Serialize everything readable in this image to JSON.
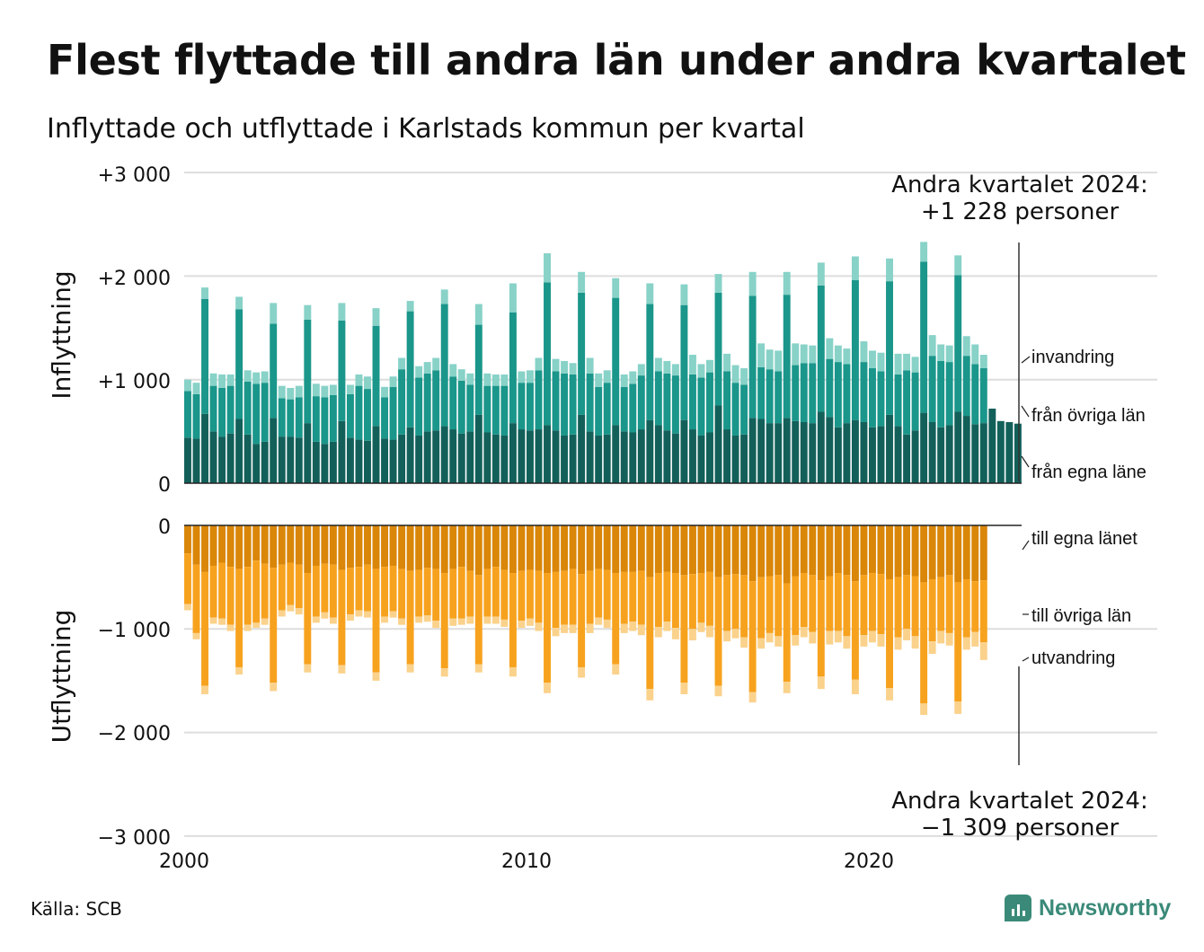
{
  "title": "Flest flyttade till andra län under andra kvartalet",
  "subtitle": "Inflyttade och utflyttade i Karlstads kommun per kvartal",
  "source": "Källa: SCB",
  "logo_text": "Newsworthy",
  "annotations": {
    "top_line1": "Andra kvartalet 2024:",
    "top_line2": "+1 228 personer",
    "bottom_line1": "Andra kvartalet 2024:",
    "bottom_line2": "−1 309 personer"
  },
  "colors": {
    "in_own": "#13605a",
    "in_other": "#1a968a",
    "in_immig": "#88d2c8",
    "out_own": "#d98609",
    "out_other": "#f7a21e",
    "out_emig": "#fad28c",
    "grid": "#dddddd",
    "logo": "#3b8a79"
  },
  "chart_data": {
    "type": "bar",
    "stacked": true,
    "period": "quarter",
    "first_period": "2000 Q1",
    "last_period": "2024 Q2",
    "xlim": [
      2000,
      2028
    ],
    "xticks": [
      "2000",
      "2010",
      "2020"
    ],
    "ylim": [
      -3000,
      3000
    ],
    "yticks": [
      "+3 000",
      "+2 000",
      "+1 000",
      "0",
      "0",
      "−1 000",
      "−2 000",
      "−3 000"
    ],
    "panels": [
      {
        "ylabel": "Inflyttning",
        "series": [
          {
            "name": "från egna länet",
            "label": "från egna läne",
            "values": [
              440,
              430,
              670,
              500,
              450,
              480,
              620,
              470,
              380,
              400,
              630,
              450,
              450,
              440,
              580,
              400,
              380,
              400,
              600,
              440,
              420,
              410,
              550,
              430,
              420,
              470,
              540,
              460,
              500,
              510,
              550,
              520,
              480,
              500,
              660,
              490,
              470,
              460,
              580,
              520,
              510,
              520,
              560,
              510,
              460,
              470,
              660,
              500,
              460,
              470,
              560,
              500,
              490,
              520,
              610,
              560,
              510,
              480,
              610,
              520,
              460,
              490,
              750,
              520,
              460,
              470,
              630,
              620,
              580,
              580,
              630,
              600,
              590,
              580,
              690,
              640,
              540,
              580,
              610,
              590,
              540,
              550,
              660,
              550,
              470,
              510,
              680,
              590,
              540,
              560,
              690,
              650,
              570,
              580,
              720,
              600,
              590,
              575
            ]
          },
          {
            "name": "från övriga län",
            "values": [
              450,
              430,
              1110,
              440,
              470,
              460,
              1060,
              510,
              580,
              570,
              910,
              370,
              360,
              390,
              1000,
              440,
              450,
              450,
              970,
              420,
              520,
              500,
              970,
              400,
              510,
              630,
              1120,
              560,
              560,
              580,
              1180,
              510,
              510,
              450,
              870,
              450,
              470,
              480,
              1070,
              450,
              460,
              570,
              1380,
              570,
              600,
              580,
              1180,
              560,
              470,
              500,
              1230,
              430,
              470,
              520,
              1120,
              520,
              550,
              560,
              1110,
              530,
              560,
              580,
              1090,
              560,
              510,
              480,
              1180,
              500,
              520,
              500,
              1190,
              540,
              570,
              580,
              1220,
              560,
              630,
              570,
              1350,
              580,
              570,
              530,
              1290,
              500,
              620,
              560,
              1460,
              640,
              640,
              610,
              1320,
              580,
              580,
              530
            ]
          },
          {
            "name": "invandring",
            "label": "invandring",
            "values": [
              110,
              110,
              110,
              120,
              130,
              110,
              120,
              110,
              110,
              110,
              200,
              120,
              110,
              110,
              140,
              120,
              110,
              100,
              170,
              90,
              110,
              120,
              170,
              100,
              100,
              110,
              100,
              110,
              110,
              120,
              140,
              120,
              110,
              110,
              200,
              120,
              110,
              110,
              280,
              110,
              120,
              120,
              280,
              120,
              120,
              110,
              200,
              150,
              130,
              120,
              190,
              120,
              120,
              110,
              200,
              130,
              120,
              110,
              200,
              190,
              130,
              120,
              180,
              170,
              170,
              160,
              230,
              230,
              190,
              200,
              220,
              210,
              180,
              170,
              220,
              200,
              160,
              150,
              230,
              200,
              170,
              180,
              220,
              200,
              160,
              150,
              190,
              200,
              160,
              160,
              190,
              190,
              190,
              130
            ]
          }
        ]
      },
      {
        "ylabel": "Utflyttning",
        "series": [
          {
            "name": "till egna länet",
            "label": "till egna länet",
            "values": [
              270,
              380,
              450,
              390,
              360,
              400,
              420,
              400,
              340,
              370,
              410,
              380,
              360,
              380,
              460,
              390,
              370,
              380,
              430,
              410,
              400,
              380,
              420,
              400,
              390,
              420,
              440,
              430,
              410,
              420,
              460,
              420,
              400,
              440,
              480,
              420,
              400,
              430,
              460,
              440,
              430,
              440,
              460,
              450,
              440,
              420,
              470,
              440,
              420,
              430,
              460,
              450,
              450,
              440,
              500,
              460,
              450,
              460,
              480,
              470,
              460,
              450,
              500,
              480,
              470,
              480,
              540,
              500,
              490,
              480,
              560,
              490,
              460,
              480,
              530,
              490,
              460,
              480,
              540,
              480,
              460,
              470,
              520,
              500,
              480,
              490,
              550,
              520,
              500,
              480,
              550,
              520,
              540,
              530
            ]
          },
          {
            "name": "till övriga län",
            "values": [
              490,
              660,
              1100,
              500,
              540,
              560,
              950,
              560,
              600,
              530,
              1110,
              440,
              410,
              420,
              880,
              490,
              470,
              510,
              920,
              450,
              420,
              450,
              1000,
              480,
              440,
              480,
              900,
              450,
              460,
              500,
              920,
              480,
              500,
              440,
              860,
              460,
              480,
              480,
              910,
              480,
              470,
              500,
              1060,
              540,
              520,
              540,
              900,
              510,
              470,
              480,
              880,
              500,
              480,
              520,
              1080,
              520,
              480,
              530,
              1040,
              530,
              480,
              520,
              1050,
              540,
              530,
              600,
              1070,
              590,
              550,
              590,
              950,
              570,
              520,
              550,
              930,
              530,
              560,
              590,
              950,
              580,
              560,
              580,
              1050,
              580,
              520,
              580,
              1170,
              600,
              520,
              560,
              1150,
              560,
              490,
              600
            ]
          },
          {
            "name": "utvandring",
            "label": "utvandring",
            "values": [
              60,
              60,
              80,
              60,
              60,
              60,
              70,
              60,
              50,
              60,
              80,
              60,
              60,
              60,
              80,
              60,
              60,
              60,
              80,
              60,
              60,
              60,
              80,
              60,
              60,
              60,
              80,
              60,
              60,
              70,
              80,
              70,
              60,
              70,
              80,
              70,
              70,
              70,
              90,
              70,
              70,
              80,
              100,
              80,
              80,
              80,
              100,
              90,
              70,
              80,
              100,
              90,
              90,
              100,
              110,
              100,
              90,
              110,
              110,
              110,
              90,
              110,
              100,
              100,
              90,
              100,
              100,
              100,
              90,
              100,
              110,
              100,
              100,
              110,
              120,
              130,
              110,
              120,
              140,
              110,
              110,
              120,
              120,
              120,
              110,
              120,
              110,
              120,
              120,
              120,
              120,
              120,
              140,
              170
            ]
          }
        ]
      }
    ]
  }
}
